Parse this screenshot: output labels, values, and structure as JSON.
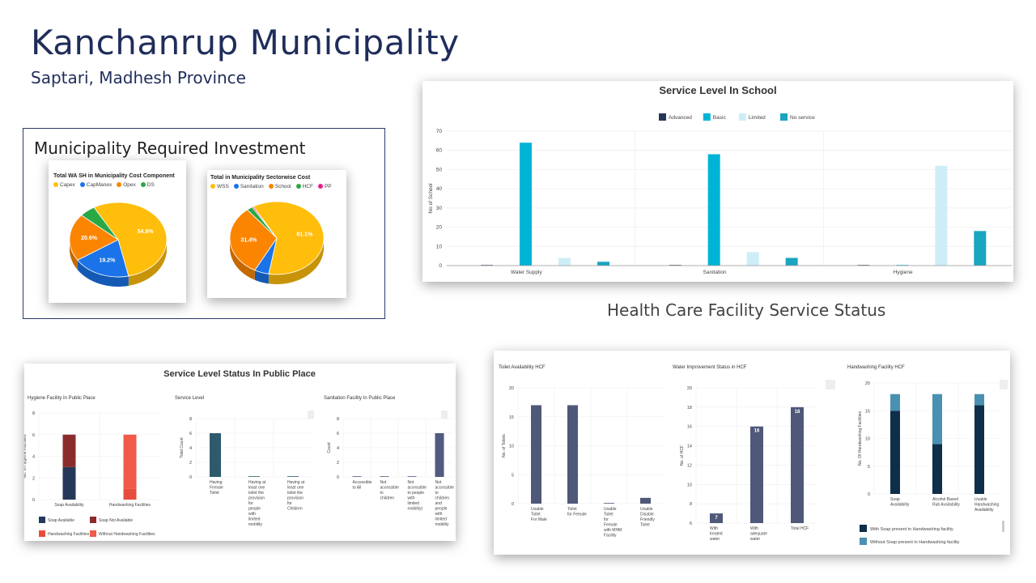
{
  "header": {
    "title": "Kanchanrup Municipality",
    "subtitle": "Saptari, Madhesh Province"
  },
  "investment": {
    "heading": "Municipality Required Investment"
  },
  "hcf_heading": "Health Care Facility Service Status",
  "colors": {
    "navy": "#1f2d5a",
    "basic": "#00b4d8",
    "limited": "#cdeef7",
    "noservice": "#1aa5c0",
    "advanced": "#253858"
  },
  "chart_data": [
    {
      "id": "wash-cost",
      "type": "pie",
      "title": "Total WA SH in Municipality Cost Component",
      "legend": [
        {
          "name": "Capex",
          "color": "#ffbe0b"
        },
        {
          "name": "CapManex",
          "color": "#1a73e8"
        },
        {
          "name": "Opex",
          "color": "#fb8500"
        },
        {
          "name": "DS",
          "color": "#2aa845"
        }
      ],
      "slices": [
        {
          "name": "Capex",
          "value": 54.9,
          "color": "#ffbe0b",
          "label": "54.9%"
        },
        {
          "name": "CapManex",
          "value": 19.2,
          "color": "#1a73e8",
          "label": "19.2%"
        },
        {
          "name": "Opex",
          "value": 20.6,
          "color": "#fb8500",
          "label": "20.6%"
        },
        {
          "name": "DS",
          "value": 5.3,
          "color": "#2aa845",
          "label": ""
        }
      ]
    },
    {
      "id": "sector-cost",
      "type": "pie",
      "title": "Total in Municipality Sectorwise Cost",
      "legend": [
        {
          "name": "WSS",
          "color": "#ffbe0b"
        },
        {
          "name": "Sanitation",
          "color": "#1a73e8"
        },
        {
          "name": "School",
          "color": "#fb8500"
        },
        {
          "name": "HCF",
          "color": "#2aa845"
        },
        {
          "name": "PP",
          "color": "#e91e8c"
        }
      ],
      "slices": [
        {
          "name": "WSS",
          "value": 61.1,
          "color": "#ffbe0b",
          "label": "61.1%"
        },
        {
          "name": "Sanitation",
          "value": 5.0,
          "color": "#1a73e8",
          "label": ""
        },
        {
          "name": "School",
          "value": 31.4,
          "color": "#fb8500",
          "label": "31.4%"
        },
        {
          "name": "HCF",
          "value": 2.0,
          "color": "#2aa845",
          "label": ""
        },
        {
          "name": "PP",
          "value": 0.5,
          "color": "#e91e8c",
          "label": ""
        }
      ]
    },
    {
      "id": "school",
      "type": "bar",
      "title": "Service Level In School",
      "ylabel": "No of School",
      "ylim": [
        0,
        70
      ],
      "yticks": [
        0,
        10,
        20,
        30,
        40,
        50,
        60,
        70
      ],
      "categories": [
        "Water Supply",
        "Sanitation",
        "Hygiene"
      ],
      "series": [
        {
          "name": "Advanced",
          "color": "#253858",
          "values": [
            0,
            0,
            0
          ]
        },
        {
          "name": "Basic",
          "color": "#00b4d8",
          "values": [
            64,
            58,
            0
          ]
        },
        {
          "name": "Limited",
          "color": "#cdeef7",
          "values": [
            4,
            7,
            52
          ]
        },
        {
          "name": "No service",
          "color": "#1aa5c0",
          "values": [
            2,
            4,
            18
          ]
        }
      ]
    },
    {
      "id": "pp-hygiene",
      "type": "bar",
      "title": "Hygiene Facility In Public Place",
      "ylabel": "No. of Hygiene Facilities",
      "ylim": [
        0,
        8
      ],
      "yticks": [
        0,
        2,
        4,
        6,
        8
      ],
      "categories": [
        "Soap Availability",
        "Handwashing Facilities"
      ],
      "series": [
        {
          "name": "Soap Available",
          "color": "#253858",
          "values": [
            3,
            0
          ]
        },
        {
          "name": "Soap Not Available",
          "color": "#8b2c2c",
          "values": [
            3,
            0
          ]
        },
        {
          "name": "Handwashing Facilities",
          "color": "#e84c3d",
          "values": [
            0,
            1
          ]
        },
        {
          "name": "Without Handwashing Facilities",
          "color": "#f05a4a",
          "values": [
            0,
            5
          ]
        }
      ]
    },
    {
      "id": "pp-service",
      "type": "bar",
      "title": "Service Level",
      "ylabel": "Total Count",
      "ylim": [
        0,
        8
      ],
      "yticks": [
        0,
        2,
        4,
        6,
        8
      ],
      "categories": [
        [
          "Having",
          "Female",
          "Toilet"
        ],
        [
          "Having at",
          "least one",
          "toilet the",
          "provision",
          "for",
          "people",
          "with",
          "limited",
          "mobility"
        ],
        [
          "Having at",
          "least one",
          "toilet the",
          "provision",
          "for",
          "Children"
        ]
      ],
      "values": [
        6,
        0,
        0
      ],
      "color": "#2e5a6e"
    },
    {
      "id": "pp-sanitation",
      "type": "bar",
      "title": "Sanitation Facility In Public Place",
      "ylabel": "Count",
      "ylim": [
        0,
        8
      ],
      "yticks": [
        0,
        2,
        4,
        6,
        8
      ],
      "categories": [
        [
          "Accessible",
          "to All"
        ],
        [
          "Not",
          "accessible",
          "to",
          "children"
        ],
        [
          "Not",
          "accessible",
          "to people",
          "with",
          "limited",
          "mobility)"
        ],
        [
          "Not",
          "accessible",
          "to",
          "children",
          "and",
          "people",
          "with",
          "limited",
          "mobility"
        ]
      ],
      "values": [
        0,
        0,
        0,
        6
      ],
      "color": "#525a80"
    },
    {
      "id": "hcf-toilet",
      "type": "bar",
      "title": "Toilet Availability HCF",
      "ylabel": "No. of Toilets",
      "ylim": [
        0,
        20
      ],
      "yticks": [
        0,
        5,
        10,
        15,
        20
      ],
      "categories": [
        [
          "Usable",
          "Toilet",
          "For Male"
        ],
        [
          "Toilet",
          "for Female"
        ],
        [
          "Usable",
          "Toilet",
          "for",
          "Female",
          "with MHM",
          "Facility"
        ],
        [
          "Usable",
          "Disable",
          "Friendly",
          "Toilet"
        ]
      ],
      "values": [
        17,
        17,
        0,
        1
      ],
      "color": "#4f5878"
    },
    {
      "id": "hcf-water",
      "type": "bar",
      "title": "Water Improvement Status in HCF",
      "ylabel": "No. of HCF",
      "ylim": [
        6,
        20
      ],
      "yticks": [
        6,
        8,
        10,
        12,
        14,
        16,
        18,
        20
      ],
      "categories": [
        [
          "With",
          "treated",
          "water"
        ],
        [
          "With",
          "adequate",
          "water"
        ],
        [
          "Total HCF"
        ]
      ],
      "values": [
        7,
        16,
        18
      ],
      "data_labels": [
        "7",
        "16",
        "18"
      ],
      "color": "#4f5878"
    },
    {
      "id": "hcf-handwash",
      "type": "bar",
      "title": "Handwashing Facility HCF",
      "ylabel": "No. Of Handwashing Facilities",
      "ylim": [
        0,
        20
      ],
      "yticks": [
        0,
        5,
        10,
        15,
        20
      ],
      "categories": [
        [
          "Soap",
          "Availability"
        ],
        [
          "Alcohol Based",
          "Rub Availability"
        ],
        [
          "Usable",
          "Handwashing",
          "Availability"
        ]
      ],
      "series": [
        {
          "name": "With Soap present in Handwashing facility",
          "color": "#0f2e4a",
          "values": [
            15,
            9,
            16
          ]
        },
        {
          "name": "Without Soap present in Handwashing facility",
          "color": "#4a90b0",
          "values": [
            3,
            9,
            2
          ]
        }
      ]
    }
  ],
  "public_place": {
    "heading": "Service Level Status In Public Place"
  }
}
